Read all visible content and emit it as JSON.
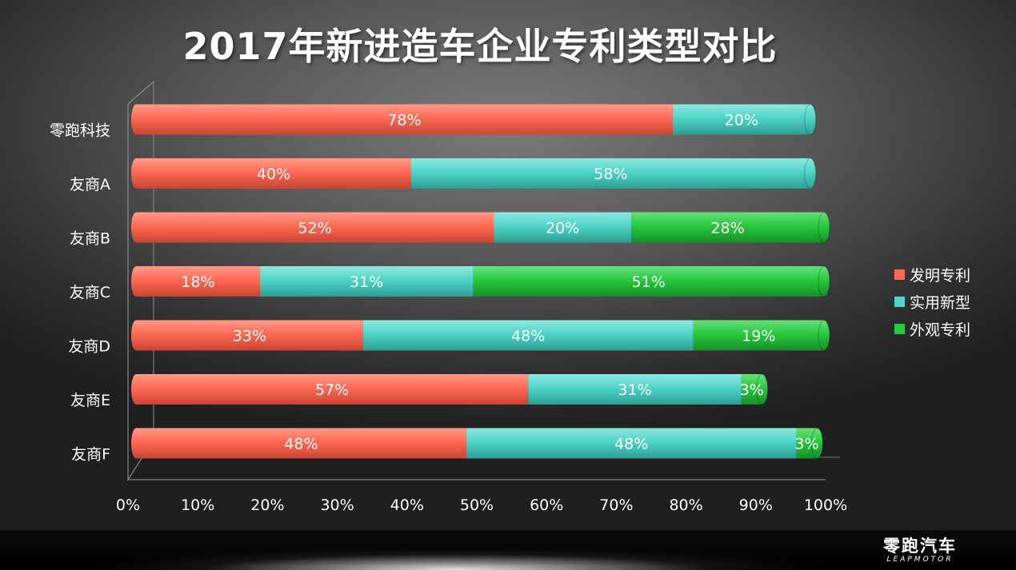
{
  "title": "2017年新进造车企业专利类型对比",
  "chart_data": {
    "type": "bar",
    "orientation": "horizontal",
    "stacked": true,
    "categories": [
      "零跑科技",
      "友商A",
      "友商B",
      "友商C",
      "友商D",
      "友商E",
      "友商F"
    ],
    "series": [
      {
        "name": "发明专利",
        "color": "#ff6a55",
        "values": [
          78,
          40,
          52,
          18,
          33,
          57,
          48
        ]
      },
      {
        "name": "实用新型",
        "color": "#4fd4c8",
        "values": [
          20,
          58,
          20,
          31,
          48,
          31,
          48
        ]
      },
      {
        "name": "外观专利",
        "color": "#27c93f",
        "values": [
          0,
          0,
          28,
          51,
          19,
          3,
          3
        ]
      }
    ],
    "xticks": [
      "0%",
      "10%",
      "20%",
      "30%",
      "40%",
      "50%",
      "60%",
      "70%",
      "80%",
      "90%",
      "100%"
    ],
    "xlim": [
      0,
      100
    ],
    "legend_position": "right"
  },
  "footer": {
    "logo_cn": "零跑汽车",
    "logo_en": "LEAPMOTOR"
  }
}
